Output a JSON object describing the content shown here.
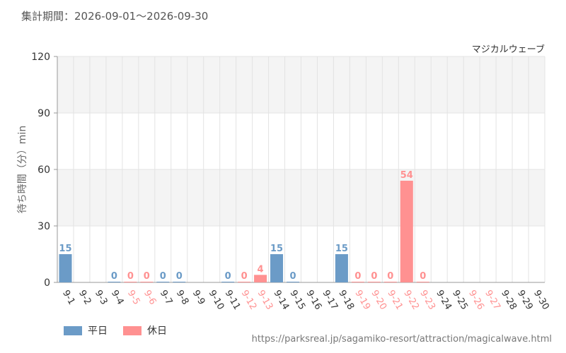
{
  "header": {
    "period_label": "集計期間：2026-09-01～2026-09-30"
  },
  "legend": {
    "weekday": "平日",
    "holiday": "休日"
  },
  "footer": {
    "source_url": "https://parksreal.jp/sagamiko-resort/attraction/magicalwave.html"
  },
  "colors": {
    "weekday": "#6b9bc7",
    "holiday": "#ff9191",
    "grid": "#e3e3e3",
    "band": "#f4f4f4"
  },
  "chart_data": {
    "type": "bar",
    "title": "マジカルウェーブ",
    "ylabel": "待ち時間（分）min",
    "xlabel": "",
    "ylim": [
      0,
      120
    ],
    "yticks": [
      0,
      30,
      60,
      90,
      120
    ],
    "categories": [
      "9-1",
      "9-2",
      "9-3",
      "9-4",
      "9-5",
      "9-6",
      "9-7",
      "9-8",
      "9-9",
      "9-10",
      "9-11",
      "9-12",
      "9-13",
      "9-14",
      "9-15",
      "9-16",
      "9-17",
      "9-18",
      "9-19",
      "9-20",
      "9-21",
      "9-22",
      "9-23",
      "9-24",
      "9-25",
      "9-26",
      "9-27",
      "9-28",
      "9-29",
      "9-30"
    ],
    "day_type": [
      "weekday",
      "weekday",
      "weekday",
      "weekday",
      "holiday",
      "holiday",
      "weekday",
      "weekday",
      "weekday",
      "weekday",
      "weekday",
      "holiday",
      "holiday",
      "weekday",
      "weekday",
      "weekday",
      "weekday",
      "weekday",
      "holiday",
      "holiday",
      "holiday",
      "holiday",
      "holiday",
      "weekday",
      "weekday",
      "holiday",
      "holiday",
      "weekday",
      "weekday",
      "weekday"
    ],
    "values": [
      15,
      null,
      null,
      0,
      0,
      0,
      0,
      0,
      null,
      null,
      0,
      0,
      4,
      15,
      0,
      null,
      null,
      15,
      0,
      0,
      0,
      54,
      0,
      null,
      null,
      null,
      null,
      null,
      null,
      null
    ],
    "grid": true,
    "legend_position": "bottom-left"
  }
}
